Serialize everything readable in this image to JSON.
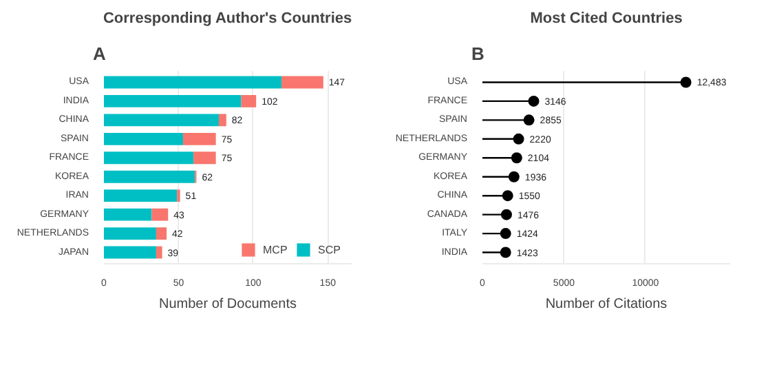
{
  "chart_data": [
    {
      "type": "bar",
      "orientation": "horizontal",
      "stacked": true,
      "title": "Corresponding Author's Countries",
      "annotations": [
        "A"
      ],
      "xlabel": "Number of Documents",
      "categories": [
        "USA",
        "INDIA",
        "CHINA",
        "SPAIN",
        "FRANCE",
        "KOREA",
        "IRAN",
        "GERMANY",
        "NETHERLANDS",
        "JAPAN"
      ],
      "series": [
        {
          "name": "SCP",
          "color": "#00bfc4",
          "values": [
            119,
            92,
            77,
            53,
            60,
            61,
            49,
            32,
            35,
            35
          ]
        },
        {
          "name": "MCP",
          "color": "#f8766d",
          "values": [
            28,
            10,
            5,
            22,
            15,
            1,
            2,
            11,
            7,
            4
          ]
        }
      ],
      "totals": [
        "147",
        "102",
        "82",
        "75",
        "75",
        "62",
        "51",
        "43",
        "42",
        "39"
      ],
      "xlim": [
        0,
        166
      ],
      "xticks": [
        0,
        50,
        100,
        150
      ],
      "grid": "x",
      "legend": "bottom"
    },
    {
      "type": "lollipop",
      "orientation": "horizontal",
      "title": "Most Cited Countries",
      "annotations": [
        "B"
      ],
      "xlabel": "Number of Citations",
      "categories": [
        "USA",
        "FRANCE",
        "SPAIN",
        "NETHERLANDS",
        "GERMANY",
        "KOREA",
        "CHINA",
        "CANADA",
        "ITALY",
        "INDIA"
      ],
      "values": [
        12483,
        3146,
        2855,
        2220,
        2104,
        1936,
        1550,
        1476,
        1424,
        1423
      ],
      "value_labels": [
        "12,483",
        "3146",
        "2855",
        "2220",
        "2104",
        "1936",
        "1550",
        "1476",
        "1424",
        "1423"
      ],
      "color": "#000000",
      "marker": "circle",
      "xlim": [
        0,
        15200
      ],
      "xticks": [
        0,
        5000,
        10000
      ],
      "grid": "x"
    }
  ]
}
